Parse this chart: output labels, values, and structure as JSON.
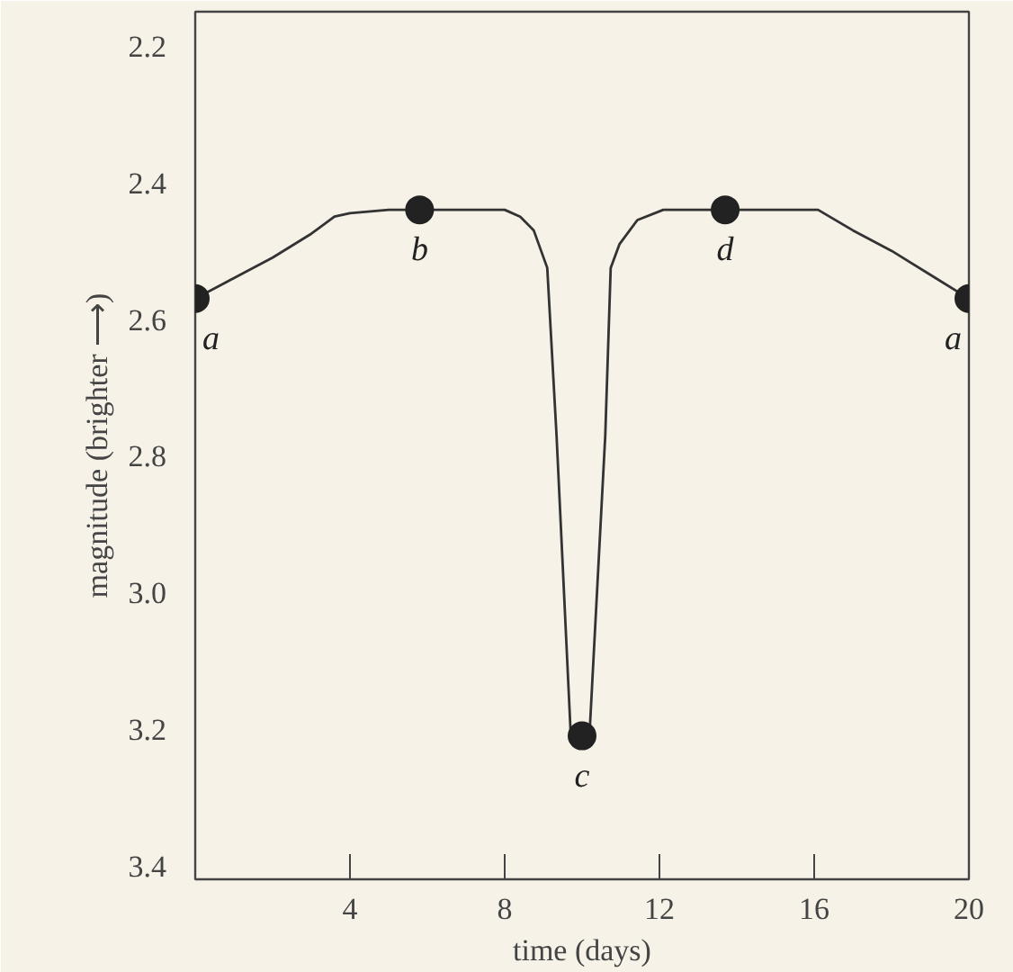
{
  "chart_data": {
    "type": "line",
    "xlabel": "time (days)",
    "ylabel": "magnitude (brighter ⟶)",
    "xlim": [
      0,
      20
    ],
    "ylim": [
      3.42,
      2.15
    ],
    "xticks": [
      4,
      8,
      12,
      16,
      20
    ],
    "yticks": [
      2.2,
      2.4,
      2.6,
      2.8,
      {
        "value": 3.0,
        "label": "3.0"
      },
      3.2,
      3.4
    ],
    "grid": false,
    "series": [
      {
        "color": "#333333",
        "marker": "none",
        "x": [
          0,
          1,
          2,
          3,
          3.6,
          4,
          5,
          6,
          7,
          8,
          8.4,
          8.75,
          9.1,
          9.34,
          9.7,
          10,
          10.2,
          10.6,
          10.74,
          10.97,
          11.43,
          12.1,
          13,
          14,
          15,
          16.1,
          17,
          18,
          19,
          20
        ],
        "values": [
          2.57,
          2.54,
          2.51,
          2.475,
          2.45,
          2.445,
          2.44,
          2.44,
          2.44,
          2.44,
          2.45,
          2.47,
          2.525,
          2.77,
          3.2,
          3.21,
          3.2,
          2.77,
          2.525,
          2.49,
          2.455,
          2.44,
          2.44,
          2.44,
          2.44,
          2.44,
          2.47,
          2.5,
          2.535,
          2.57
        ]
      },
      {
        "type": "scatter",
        "color": "#222222",
        "marker": "circle",
        "x": [
          0,
          5.8,
          10,
          13.7,
          20
        ],
        "values": [
          2.57,
          2.44,
          3.21,
          2.44,
          2.57
        ]
      }
    ],
    "annotations": [
      {
        "text": "a",
        "x": 0,
        "y": 2.57
      },
      {
        "text": "b",
        "x": 5.8,
        "y": 2.44
      },
      {
        "text": "c",
        "x": 10,
        "y": 3.21
      },
      {
        "text": "d",
        "x": 13.7,
        "y": 2.44
      },
      {
        "text": "a",
        "x": 20,
        "y": 2.57
      }
    ]
  }
}
